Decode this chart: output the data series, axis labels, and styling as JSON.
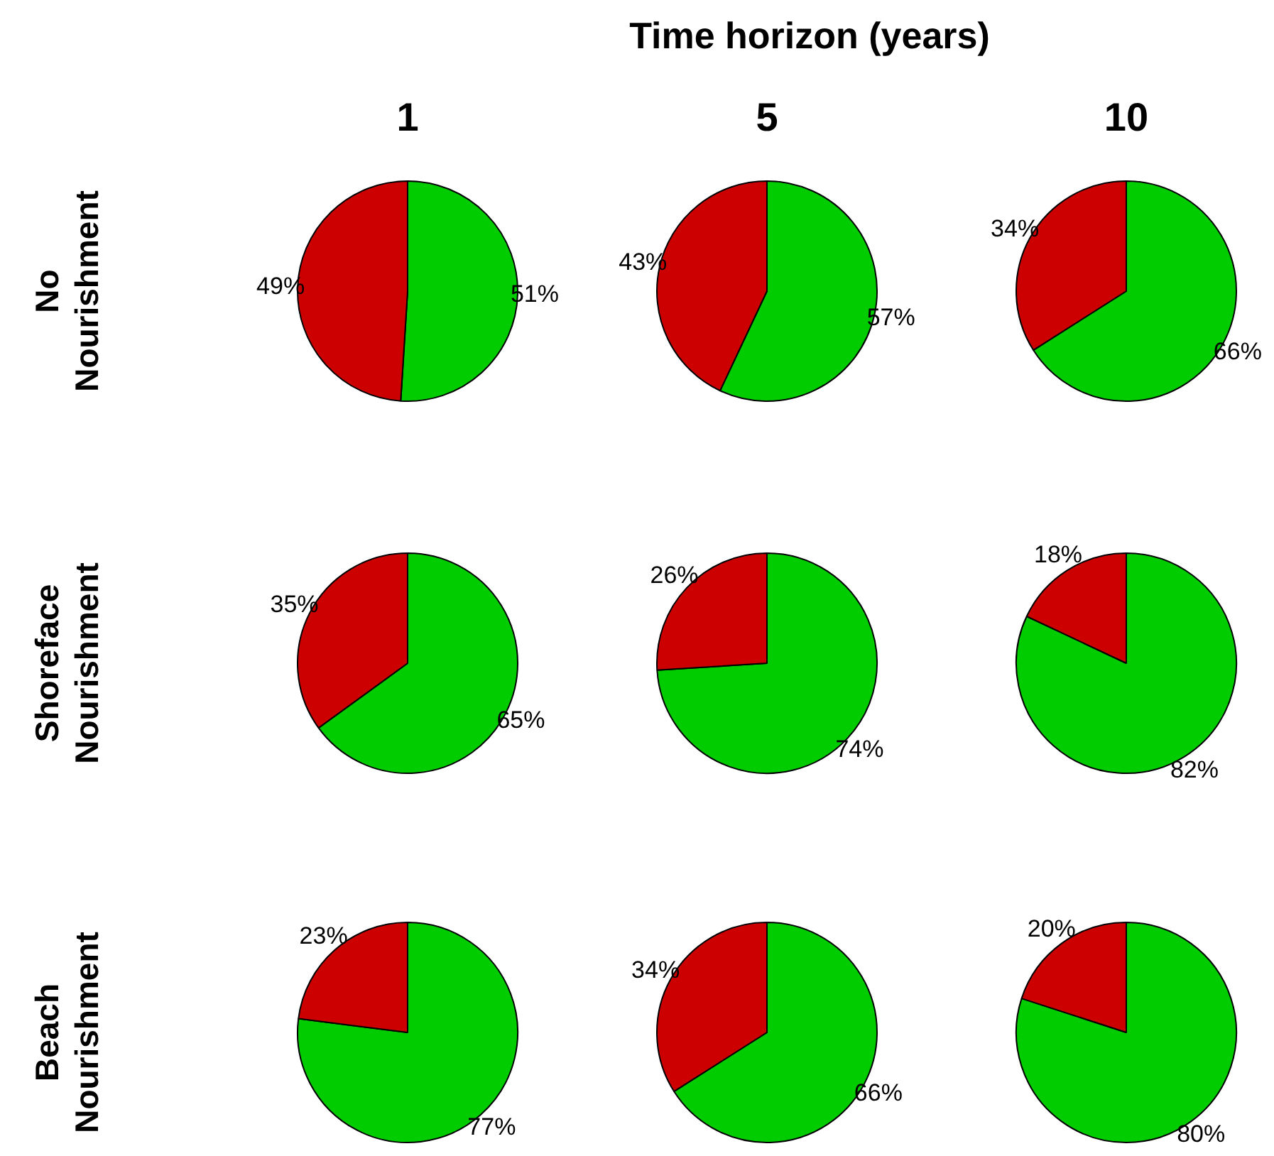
{
  "chart_data": [
    {
      "type": "other",
      "title": "Time horizon (years)"
    },
    {
      "type": "pie",
      "title": "1",
      "ylabel": "No\nNourishment",
      "categories": [
        null,
        null
      ],
      "values": [
        51,
        49
      ],
      "colors": [
        "#00cc00",
        "#cc0000"
      ],
      "value_labels": [
        "51%",
        "49%"
      ]
    },
    {
      "type": "pie",
      "title": "5",
      "categories": [
        null,
        null
      ],
      "values": [
        57,
        43
      ],
      "colors": [
        "#00cc00",
        "#cc0000"
      ],
      "value_labels": [
        "57%",
        "43%"
      ]
    },
    {
      "type": "pie",
      "title": "10",
      "categories": [
        null,
        null
      ],
      "values": [
        66,
        34
      ],
      "colors": [
        "#00cc00",
        "#cc0000"
      ],
      "value_labels": [
        "66%",
        "34%"
      ]
    },
    {
      "type": "pie",
      "ylabel": "Shoreface\nNourishment",
      "categories": [
        null,
        null
      ],
      "values": [
        65,
        35
      ],
      "colors": [
        "#00cc00",
        "#cc0000"
      ],
      "value_labels": [
        "65%",
        "35%"
      ]
    },
    {
      "type": "pie",
      "categories": [
        null,
        null
      ],
      "values": [
        74,
        26
      ],
      "colors": [
        "#00cc00",
        "#cc0000"
      ],
      "value_labels": [
        "74%",
        "26%"
      ]
    },
    {
      "type": "pie",
      "categories": [
        null,
        null
      ],
      "values": [
        82,
        18
      ],
      "colors": [
        "#00cc00",
        "#cc0000"
      ],
      "value_labels": [
        "82%",
        "18%"
      ]
    },
    {
      "type": "pie",
      "ylabel": "Beach\nNourishment",
      "categories": [
        null,
        null
      ],
      "values": [
        77,
        23
      ],
      "colors": [
        "#00cc00",
        "#cc0000"
      ],
      "value_labels": [
        "77%",
        "23%"
      ]
    },
    {
      "type": "pie",
      "categories": [
        null,
        null
      ],
      "values": [
        66,
        34
      ],
      "colors": [
        "#00cc00",
        "#cc0000"
      ],
      "value_labels": [
        "66%",
        "34%"
      ]
    },
    {
      "type": "pie",
      "categories": [
        null,
        null
      ],
      "values": [
        80,
        20
      ],
      "colors": [
        "#00cc00",
        "#cc0000"
      ],
      "value_labels": [
        "80%",
        "20%"
      ]
    }
  ]
}
